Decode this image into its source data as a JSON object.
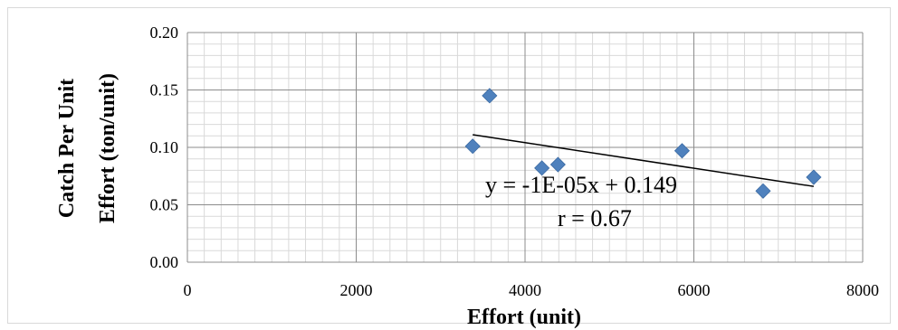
{
  "chart_data": {
    "type": "scatter",
    "title": "",
    "xlabel": "Effort (unit)",
    "ylabel_lines": [
      "Catch Per Unit",
      "Effort  (ton/unit)"
    ],
    "xlim": [
      0,
      8000
    ],
    "ylim": [
      0,
      0.2
    ],
    "x_ticks": [
      "0",
      "2000",
      "4000",
      "6000",
      "8000"
    ],
    "y_ticks": [
      "0.00",
      "0.05",
      "0.10",
      "0.15",
      "0.20"
    ],
    "grid": true,
    "legend": "none",
    "marker": "diamond",
    "marker_color": "#4f81bd",
    "points": [
      {
        "x": 3380,
        "y": 0.101
      },
      {
        "x": 3580,
        "y": 0.145
      },
      {
        "x": 4200,
        "y": 0.082
      },
      {
        "x": 4390,
        "y": 0.085
      },
      {
        "x": 5860,
        "y": 0.097
      },
      {
        "x": 6820,
        "y": 0.062
      },
      {
        "x": 7420,
        "y": 0.074
      }
    ],
    "trendline": {
      "x": [
        3380,
        7420
      ],
      "y": [
        0.111,
        0.066
      ],
      "color": "#000000"
    },
    "annotations": [
      "y = -1E-05x + 0.149",
      "r = 0.67"
    ]
  }
}
